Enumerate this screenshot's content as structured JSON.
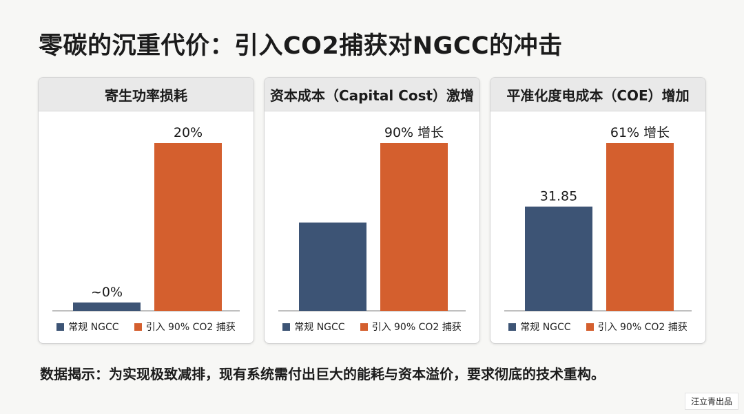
{
  "page_title": "零碳的沉重代价：引入CO2捕获对NGCC的冲击",
  "footer_text": "数据揭示：为实现极致减排，现有系统需付出巨大的能耗与资本溢价，要求彻底的技术重构。",
  "credit": "汪立青出品",
  "colors": {
    "conventional": "#3d5475",
    "ccs": "#d45f2e"
  },
  "legend": {
    "conventional": "常规 NGCC",
    "ccs": "引入 90% CO2 捕获"
  },
  "panels": [
    {
      "title": "寄生功率损耗"
    },
    {
      "title": "资本成本（Capital Cost）激增"
    },
    {
      "title": "平准化度电成本（COE）增加"
    }
  ],
  "chart_data": [
    {
      "type": "bar",
      "title": "寄生功率损耗",
      "categories": [
        "常规 NGCC",
        "引入 90% CO2 捕获"
      ],
      "values": [
        1,
        20
      ],
      "data_labels": [
        "~0%",
        "20%"
      ],
      "ylim": [
        0,
        20
      ]
    },
    {
      "type": "bar",
      "title": "资本成本（Capital Cost）激增",
      "categories": [
        "常规 NGCC",
        "引入 90% CO2 捕获"
      ],
      "values": [
        100,
        190
      ],
      "data_labels": [
        "",
        "90% 增长"
      ],
      "ylim": [
        0,
        190
      ]
    },
    {
      "type": "bar",
      "title": "平准化度电成本（COE）增加",
      "categories": [
        "常规 NGCC",
        "引入 90% CO2 捕获"
      ],
      "values": [
        31.85,
        51.3
      ],
      "data_labels": [
        "31.85",
        "61% 增长"
      ],
      "ylim": [
        0,
        51.3
      ]
    }
  ]
}
